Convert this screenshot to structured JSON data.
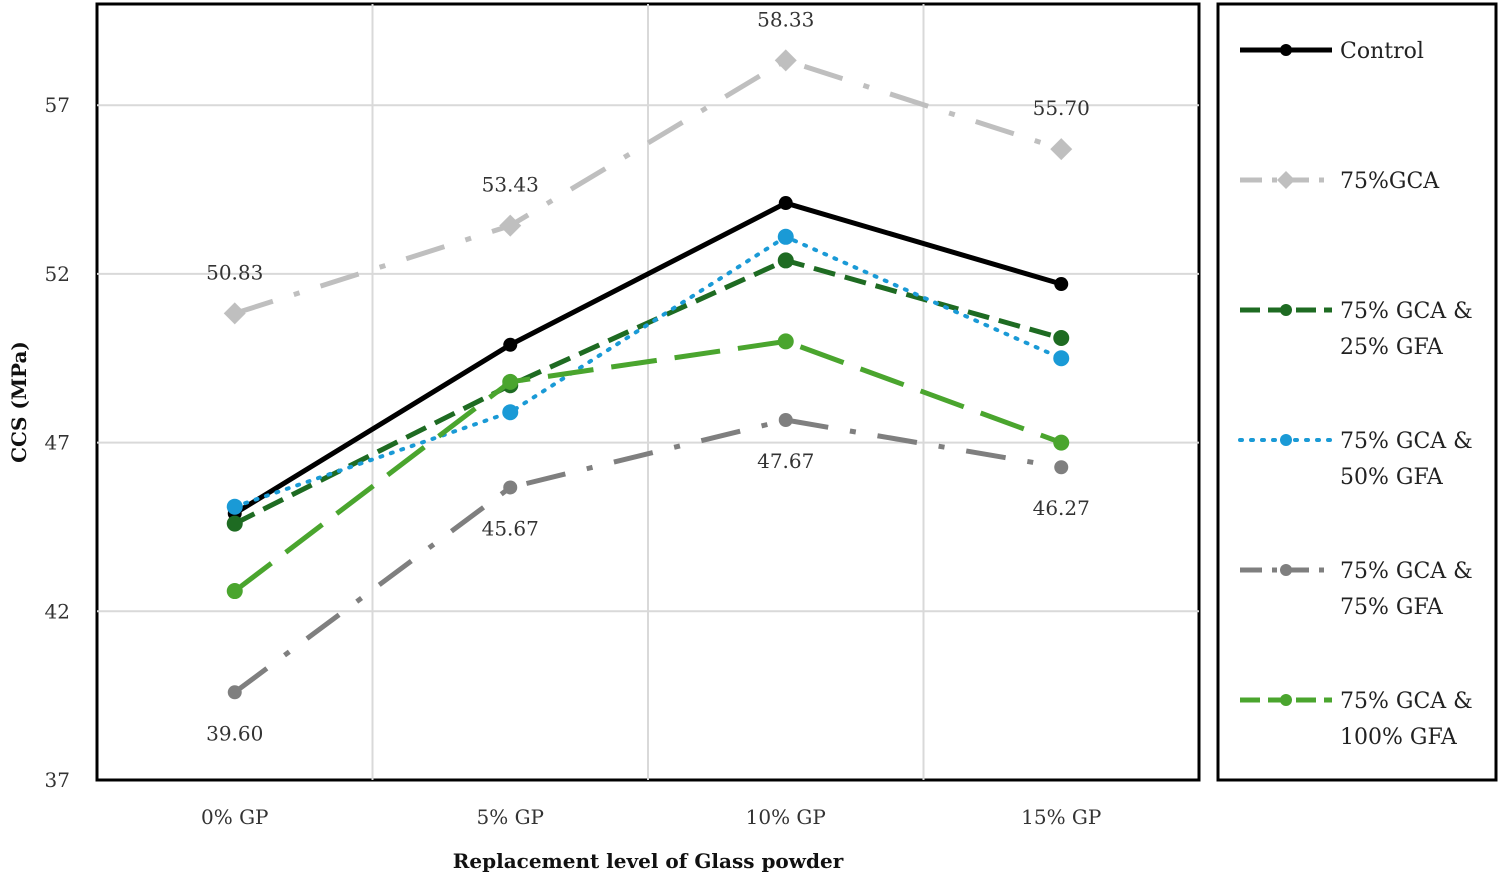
{
  "chart_data": {
    "type": "line",
    "title": "",
    "xlabel": "Replacement level of Glass powder",
    "ylabel": "CCS (MPa)",
    "categories": [
      "0% GP",
      "5% GP",
      "10% GP",
      "15% GP"
    ],
    "ylim": [
      37,
      60
    ],
    "yticks": [
      37,
      42,
      47,
      52,
      57
    ],
    "grid": true,
    "legend_position": "right",
    "series": [
      {
        "name": "Control",
        "lines": [
          "Control"
        ],
        "color": "#000000",
        "style": "solid",
        "values": [
          44.9,
          49.9,
          54.1,
          51.7
        ]
      },
      {
        "name": "75%GCA",
        "lines": [
          "75%GCA"
        ],
        "color": "#bfbfbf",
        "style": "dashdot",
        "values": [
          50.83,
          53.43,
          58.33,
          55.7
        ],
        "labels": [
          {
            "index": 0,
            "text": "50.83",
            "pos": "above"
          },
          {
            "index": 1,
            "text": "53.43",
            "pos": "above"
          },
          {
            "index": 2,
            "text": "58.33",
            "pos": "above"
          },
          {
            "index": 3,
            "text": "55.70",
            "pos": "above"
          }
        ]
      },
      {
        "name": "75% GCA & 25% GFA",
        "lines": [
          "75% GCA &",
          "25% GFA"
        ],
        "color": "#1e6b22",
        "style": "dashed",
        "values": [
          44.6,
          48.7,
          52.4,
          50.1
        ]
      },
      {
        "name": "75% GCA & 50% GFA",
        "lines": [
          "75% GCA &",
          "50% GFA"
        ],
        "color": "#1a9ad6",
        "style": "dotted",
        "values": [
          45.1,
          47.9,
          53.1,
          49.5
        ]
      },
      {
        "name": "75% GCA & 75% GFA",
        "lines": [
          "75% GCA &",
          "75% GFA"
        ],
        "color": "#7f7f7f",
        "style": "dashdot",
        "values": [
          39.6,
          45.67,
          47.67,
          46.27
        ],
        "labels": [
          {
            "index": 0,
            "text": "39.60",
            "pos": "below"
          },
          {
            "index": 1,
            "text": "45.67",
            "pos": "below"
          },
          {
            "index": 2,
            "text": "47.67",
            "pos": "below"
          },
          {
            "index": 3,
            "text": "46.27",
            "pos": "below"
          }
        ]
      },
      {
        "name": "75% GCA & 100% GFA",
        "lines": [
          "75% GCA &",
          "100% GFA"
        ],
        "color": "#4aa52e",
        "style": "longdash",
        "values": [
          42.6,
          48.8,
          50.0,
          47.0
        ]
      }
    ]
  }
}
